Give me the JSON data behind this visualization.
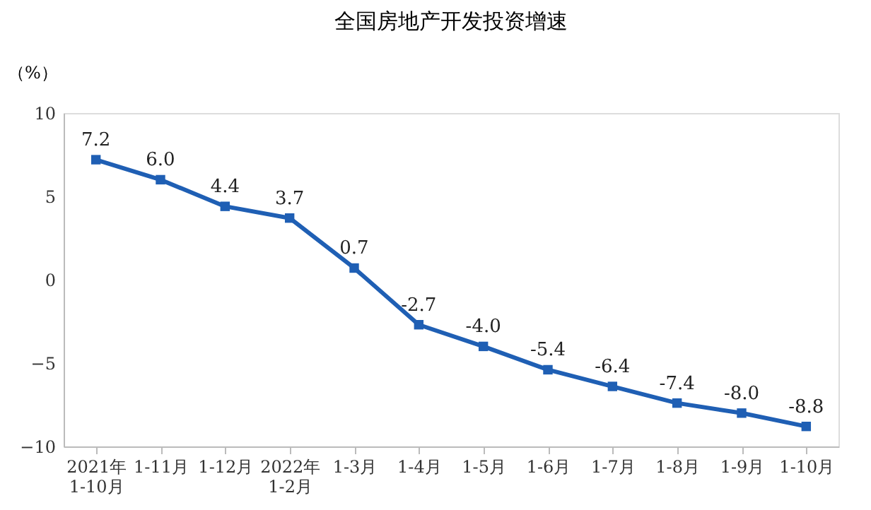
{
  "chart_data": {
    "type": "line",
    "title": "全国房地产开发投资增速",
    "ylabel": "（%）",
    "categories": [
      "2021年\n1-10月",
      "1-11月",
      "1-12月",
      "2022年\n1-2月",
      "1-3月",
      "1-4月",
      "1-5月",
      "1-6月",
      "1-7月",
      "1-8月",
      "1-9月",
      "1-10月"
    ],
    "series": [
      {
        "color": "#1f5fb4",
        "values": [
          7.2,
          6.0,
          4.4,
          3.7,
          0.7,
          -2.7,
          -4.0,
          -5.4,
          -6.4,
          -7.4,
          -8.0,
          -8.8
        ],
        "value_labels": [
          "7.2",
          "6.0",
          "4.4",
          "3.7",
          "0.7",
          "-2.7",
          "-4.0",
          "-5.4",
          "-6.4",
          "-7.4",
          "-8.0",
          "-8.8"
        ]
      }
    ],
    "ylim": [
      -10,
      10
    ],
    "yticks": [
      -10,
      -5,
      0,
      5,
      10
    ],
    "grid": false,
    "marker": "square",
    "line_style": "solid"
  }
}
